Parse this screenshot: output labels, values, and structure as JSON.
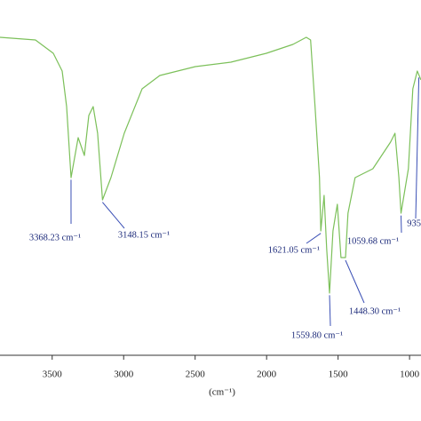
{
  "chart_data": {
    "type": "line",
    "xlabel": "(cm⁻¹)",
    "xlim": [
      3865,
      920
    ],
    "xticks": [
      3500,
      3000,
      2500,
      2000,
      1500,
      1000
    ],
    "ylim": [
      0,
      100
    ],
    "series": [
      {
        "color": "#7cc05a",
        "x": [
          3865,
          3617,
          3492,
          3430,
          3399,
          3368,
          3318,
          3275,
          3244,
          3213,
          3182,
          3148,
          3089,
          2996,
          2871,
          2747,
          2499,
          2250,
          2002,
          1816,
          1723,
          1692,
          1661,
          1630,
          1621,
          1598,
          1580,
          1560,
          1536,
          1505,
          1480,
          1448,
          1431,
          1381,
          1257,
          1133,
          1102,
          1075,
          1060,
          1008,
          977,
          946,
          920
        ],
        "values": [
          89.5,
          88.75,
          85,
          80,
          70,
          50,
          61.25,
          56.25,
          67.5,
          70,
          62.5,
          43.75,
          50,
          62.5,
          75,
          78.75,
          81.25,
          82.5,
          85,
          87.5,
          89.5,
          88.75,
          70,
          50,
          35,
          45,
          30,
          17.5,
          35,
          42.5,
          27.5,
          27.5,
          40,
          50,
          52.5,
          60,
          62.5,
          50,
          40,
          52.5,
          75,
          80,
          77.5
        ]
      }
    ],
    "annotations": [
      {
        "x": 3368.23,
        "label": "3368.23 cm⁻¹"
      },
      {
        "x": 3148.15,
        "label": "3148.15 cm⁻¹"
      },
      {
        "x": 1621.05,
        "label": "1621.05 cm⁻¹"
      },
      {
        "x": 1559.8,
        "label": "1559.80 cm⁻¹"
      },
      {
        "x": 1448.3,
        "label": "1448.30 cm⁻¹"
      },
      {
        "x": 1059.68,
        "label": "1059.68 cm⁻¹"
      },
      {
        "x": 935,
        "label": "935"
      }
    ]
  }
}
